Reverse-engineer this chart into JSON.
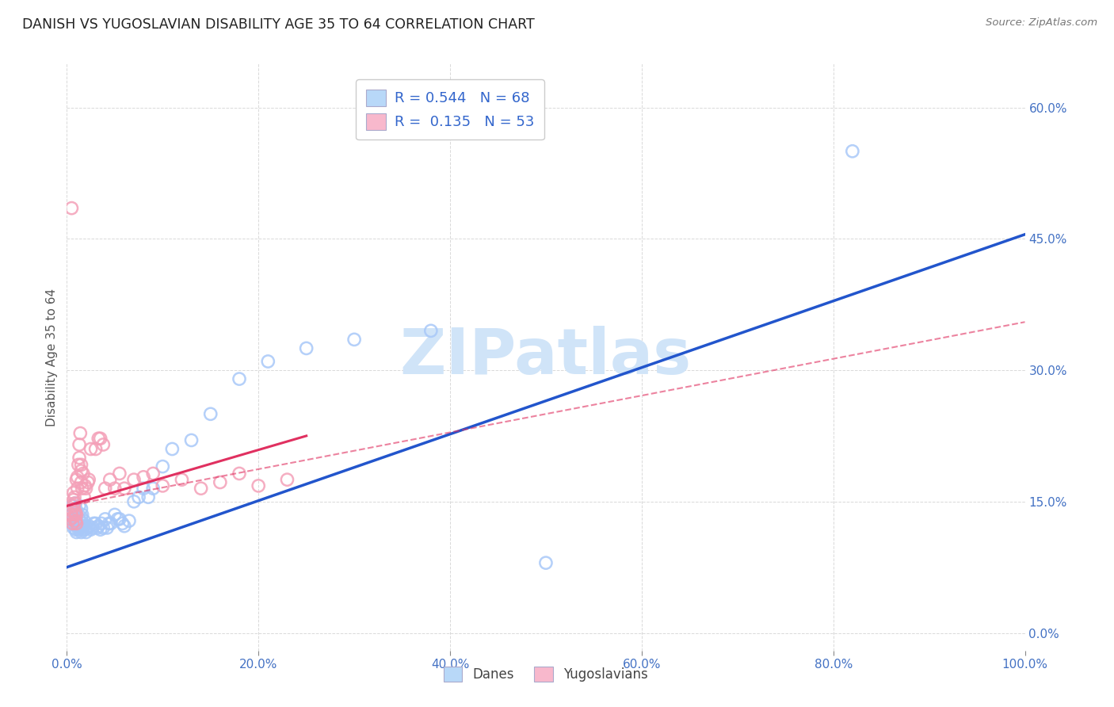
{
  "title": "DANISH VS YUGOSLAVIAN DISABILITY AGE 35 TO 64 CORRELATION CHART",
  "source": "Source: ZipAtlas.com",
  "ylabel": "Disability Age 35 to 64",
  "xlim": [
    0.0,
    1.0
  ],
  "ylim": [
    -0.02,
    0.65
  ],
  "x_ticks": [
    0.0,
    0.2,
    0.4,
    0.6,
    0.8,
    1.0
  ],
  "x_tick_labels": [
    "0.0%",
    "20.0%",
    "40.0%",
    "60.0%",
    "80.0%",
    "100.0%"
  ],
  "y_ticks": [
    0.0,
    0.15,
    0.3,
    0.45,
    0.6
  ],
  "y_tick_labels": [
    "0.0%",
    "15.0%",
    "30.0%",
    "45.0%",
    "60.0%"
  ],
  "danes_color": "#a8c8f8",
  "yugoslav_color": "#f4a0b8",
  "trend_dane_color": "#2255cc",
  "trend_yugoslav_color": "#e03060",
  "background": "#ffffff",
  "watermark_color": "#d0e4f8",
  "legend_dane_color": "#b8d8f8",
  "legend_yugoslav_color": "#f8b8cc",
  "danes_x": [
    0.005,
    0.005,
    0.007,
    0.007,
    0.008,
    0.008,
    0.009,
    0.009,
    0.009,
    0.01,
    0.01,
    0.01,
    0.01,
    0.011,
    0.012,
    0.013,
    0.013,
    0.013,
    0.014,
    0.015,
    0.015,
    0.015,
    0.015,
    0.016,
    0.016,
    0.016,
    0.017,
    0.018,
    0.019,
    0.019,
    0.02,
    0.022,
    0.023,
    0.025,
    0.027,
    0.028,
    0.03,
    0.032,
    0.033,
    0.035,
    0.036,
    0.038,
    0.04,
    0.042,
    0.044,
    0.046,
    0.05,
    0.053,
    0.055,
    0.058,
    0.06,
    0.065,
    0.07,
    0.075,
    0.08,
    0.085,
    0.09,
    0.1,
    0.11,
    0.13,
    0.15,
    0.18,
    0.21,
    0.25,
    0.3,
    0.38,
    0.5,
    0.82
  ],
  "danes_y": [
    0.135,
    0.145,
    0.12,
    0.13,
    0.125,
    0.14,
    0.118,
    0.128,
    0.148,
    0.115,
    0.122,
    0.13,
    0.14,
    0.125,
    0.118,
    0.12,
    0.13,
    0.145,
    0.128,
    0.115,
    0.122,
    0.132,
    0.142,
    0.118,
    0.125,
    0.135,
    0.12,
    0.128,
    0.122,
    0.118,
    0.115,
    0.12,
    0.122,
    0.118,
    0.12,
    0.125,
    0.125,
    0.12,
    0.122,
    0.118,
    0.125,
    0.12,
    0.13,
    0.12,
    0.125,
    0.125,
    0.135,
    0.13,
    0.13,
    0.125,
    0.122,
    0.128,
    0.15,
    0.155,
    0.165,
    0.155,
    0.165,
    0.19,
    0.21,
    0.22,
    0.25,
    0.29,
    0.31,
    0.325,
    0.335,
    0.345,
    0.08,
    0.55
  ],
  "yugoslav_x": [
    0.004,
    0.005,
    0.005,
    0.006,
    0.006,
    0.007,
    0.007,
    0.007,
    0.008,
    0.008,
    0.008,
    0.009,
    0.009,
    0.01,
    0.01,
    0.01,
    0.011,
    0.011,
    0.012,
    0.013,
    0.013,
    0.014,
    0.015,
    0.015,
    0.015,
    0.016,
    0.017,
    0.018,
    0.019,
    0.02,
    0.022,
    0.023,
    0.025,
    0.03,
    0.033,
    0.035,
    0.038,
    0.04,
    0.045,
    0.05,
    0.055,
    0.06,
    0.07,
    0.08,
    0.09,
    0.1,
    0.12,
    0.14,
    0.16,
    0.18,
    0.2,
    0.23,
    0.005
  ],
  "yugoslav_y": [
    0.13,
    0.135,
    0.14,
    0.125,
    0.132,
    0.145,
    0.152,
    0.16,
    0.135,
    0.148,
    0.155,
    0.128,
    0.138,
    0.125,
    0.135,
    0.175,
    0.165,
    0.178,
    0.192,
    0.2,
    0.215,
    0.228,
    0.172,
    0.185,
    0.192,
    0.165,
    0.182,
    0.155,
    0.168,
    0.165,
    0.172,
    0.175,
    0.21,
    0.21,
    0.222,
    0.222,
    0.215,
    0.165,
    0.175,
    0.165,
    0.182,
    0.165,
    0.175,
    0.178,
    0.182,
    0.168,
    0.175,
    0.165,
    0.172,
    0.182,
    0.168,
    0.175,
    0.485
  ],
  "trend_dane_x0": 0.0,
  "trend_dane_y0": 0.075,
  "trend_dane_x1": 1.0,
  "trend_dane_y1": 0.455,
  "trend_yugoslav_solid_x0": 0.0,
  "trend_yugoslav_solid_y0": 0.145,
  "trend_yugoslav_solid_x1": 0.25,
  "trend_yugoslav_solid_y1": 0.225,
  "trend_yugoslav_dash_x0": 0.0,
  "trend_yugoslav_dash_y0": 0.145,
  "trend_yugoslav_dash_x1": 1.0,
  "trend_yugoslav_dash_y1": 0.355
}
